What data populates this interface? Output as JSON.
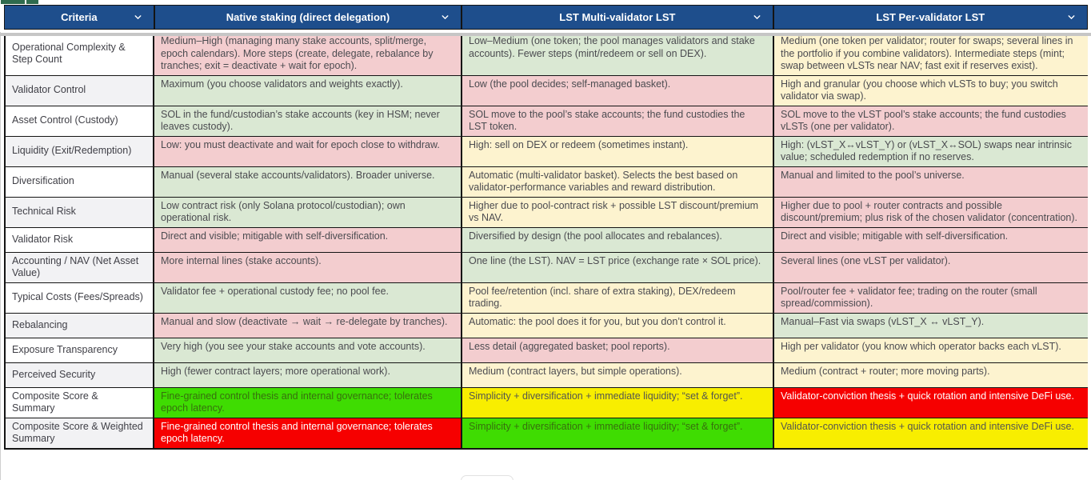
{
  "colors": {
    "headerBlue": "#1e4e8c",
    "headerText": "#ffffff",
    "pink": "#f3cdcf",
    "green": "#dae8d3",
    "yellow": "#fdf3cf",
    "scoreGreen": "#3fdc02",
    "scoreYellow": "#f8ee00",
    "scoreRed": "#f60000",
    "scoreGreenText": "#37700e",
    "scoreRedText": "#ffffff",
    "topGreen": "#2f6b4e"
  },
  "header": {
    "columns": [
      {
        "label": "Criteria"
      },
      {
        "label": "Native staking (direct delegation)"
      },
      {
        "label": "LST Multi-validator LST"
      },
      {
        "label": "LST Per-validator LST"
      }
    ]
  },
  "rows": [
    {
      "criteria": "Operational Complexity & Step Count",
      "cells": [
        {
          "tone": "pink",
          "text": "Medium–High (managing many stake accounts, split/merge, epoch calendars). More steps (create, delegate, rebalance by tranches; exit = deactivate + wait for epoch)."
        },
        {
          "tone": "green",
          "text": "Low–Medium (one token; the pool manages validators and stake accounts). Fewer steps (mint/redeem or sell on DEX)."
        },
        {
          "tone": "yellow",
          "text": "Medium (one token per validator; router for swaps; several lines in the portfolio if you combine validators). Intermediate steps (mint; swap between vLSTs near NAV; fast exit if reserves exist)."
        }
      ]
    },
    {
      "criteria": "Validator Control",
      "cells": [
        {
          "tone": "green",
          "text": "Maximum (you choose validators and weights exactly)."
        },
        {
          "tone": "pink",
          "text": "Low (the pool decides; self-managed basket)."
        },
        {
          "tone": "yellow",
          "text": "High and granular (you choose which vLSTs to buy; you switch validator via swap)."
        }
      ]
    },
    {
      "criteria": "Asset Control (Custody)",
      "cells": [
        {
          "tone": "green",
          "text": "SOL in the fund/custodian’s stake accounts (key in HSM; never leaves custody)."
        },
        {
          "tone": "pink",
          "text": "SOL move to the pool’s stake accounts; the fund custodies the LST token."
        },
        {
          "tone": "pink",
          "text": "SOL move to the vLST pool’s stake accounts; the fund custodies vLSTs (one per validator)."
        }
      ]
    },
    {
      "criteria": "Liquidity (Exit/Redemption)",
      "cells": [
        {
          "tone": "pink",
          "text": "Low: you must deactivate and wait for epoch close to withdraw."
        },
        {
          "tone": "yellow",
          "text": "High: sell on DEX or redeem (sometimes instant)."
        },
        {
          "tone": "green",
          "text": "High: (vLST_X↔vLST_Y) or (vLST_X↔SOL) swaps near intrinsic value; scheduled redemption if no reserves."
        }
      ]
    },
    {
      "criteria": "Diversification",
      "cells": [
        {
          "tone": "green",
          "text": "Manual (several stake accounts/validators). Broader universe."
        },
        {
          "tone": "yellow",
          "text": "Automatic (multi-validator basket). Selects the best based on validator-performance variables and reward distribution."
        },
        {
          "tone": "pink",
          "text": "Manual and limited to the pool’s universe."
        }
      ]
    },
    {
      "criteria": "Technical Risk",
      "cells": [
        {
          "tone": "green",
          "text": "Low contract risk (only Solana protocol/custodian); own operational risk."
        },
        {
          "tone": "yellow",
          "text": "Higher due to pool-contract risk + possible LST discount/premium vs NAV."
        },
        {
          "tone": "pink",
          "text": "Higher due to pool + router contracts and possible discount/premium; plus risk of the chosen validator (concentration)."
        }
      ]
    },
    {
      "criteria": "Validator Risk",
      "cells": [
        {
          "tone": "pink",
          "text": "Direct and visible; mitigable with self-diversification."
        },
        {
          "tone": "green",
          "text": "Diversified by design (the pool allocates and rebalances)."
        },
        {
          "tone": "pink",
          "text": "Direct and visible; mitigable with self-diversification."
        }
      ]
    },
    {
      "criteria": "Accounting / NAV (Net Asset Value)",
      "cells": [
        {
          "tone": "pink",
          "text": "More internal lines (stake accounts)."
        },
        {
          "tone": "green",
          "text": "One line (the LST). NAV = LST price (exchange rate × SOL price)."
        },
        {
          "tone": "pink",
          "text": "Several lines (one vLST per validator)."
        }
      ]
    },
    {
      "criteria": "Typical Costs (Fees/Spreads)",
      "cells": [
        {
          "tone": "green",
          "text": "Validator fee + operational custody fee; no pool fee."
        },
        {
          "tone": "yellow",
          "text": "Pool fee/retention (incl. share of extra staking), DEX/redeem trading."
        },
        {
          "tone": "pink",
          "text": "Pool/router fee + validator fee; trading on the router (small spread/commission)."
        }
      ]
    },
    {
      "criteria": "Rebalancing",
      "cells": [
        {
          "tone": "pink",
          "text": "Manual and slow (deactivate → wait → re-delegate by tranches)."
        },
        {
          "tone": "yellow",
          "text": "Automatic: the pool does it for you, but you don’t control it."
        },
        {
          "tone": "green",
          "text": "Manual–Fast via swaps (vLST_X ↔ vLST_Y)."
        }
      ]
    },
    {
      "criteria": "Exposure Transparency",
      "cells": [
        {
          "tone": "green",
          "text": "Very high (you see your stake accounts and vote accounts)."
        },
        {
          "tone": "pink",
          "text": "Less detail (aggregated basket; pool reports)."
        },
        {
          "tone": "yellow",
          "text": "High per validator (you know which operator backs each vLST)."
        }
      ]
    },
    {
      "criteria": "Perceived Security",
      "cells": [
        {
          "tone": "green",
          "text": "High (fewer contract layers; more operational work)."
        },
        {
          "tone": "yellow",
          "text": "Medium (contract layers, but simple operations)."
        },
        {
          "tone": "yellow",
          "text": "Medium (contract + router; more moving parts)."
        }
      ]
    },
    {
      "criteria": "Composite Score & Summary",
      "cells": [
        {
          "tone": "score-green",
          "text": "Fine-grained control thesis and internal governance; tolerates epoch latency."
        },
        {
          "tone": "score-yellow",
          "text": "Simplicity + diversification + immediate liquidity; “set & forget”."
        },
        {
          "tone": "score-red",
          "text": "Validator-conviction thesis + quick rotation and intensive DeFi use."
        }
      ]
    },
    {
      "criteria": "Composite Score & Weighted Summary",
      "cells": [
        {
          "tone": "score-red",
          "text": "Fine-grained control thesis and internal governance; tolerates epoch latency."
        },
        {
          "tone": "score-green",
          "text": "Simplicity + diversification + immediate liquidity; “set & forget”."
        },
        {
          "tone": "score-yellow",
          "text": "Validator-conviction thesis + quick rotation and intensive DeFi use."
        }
      ]
    }
  ]
}
